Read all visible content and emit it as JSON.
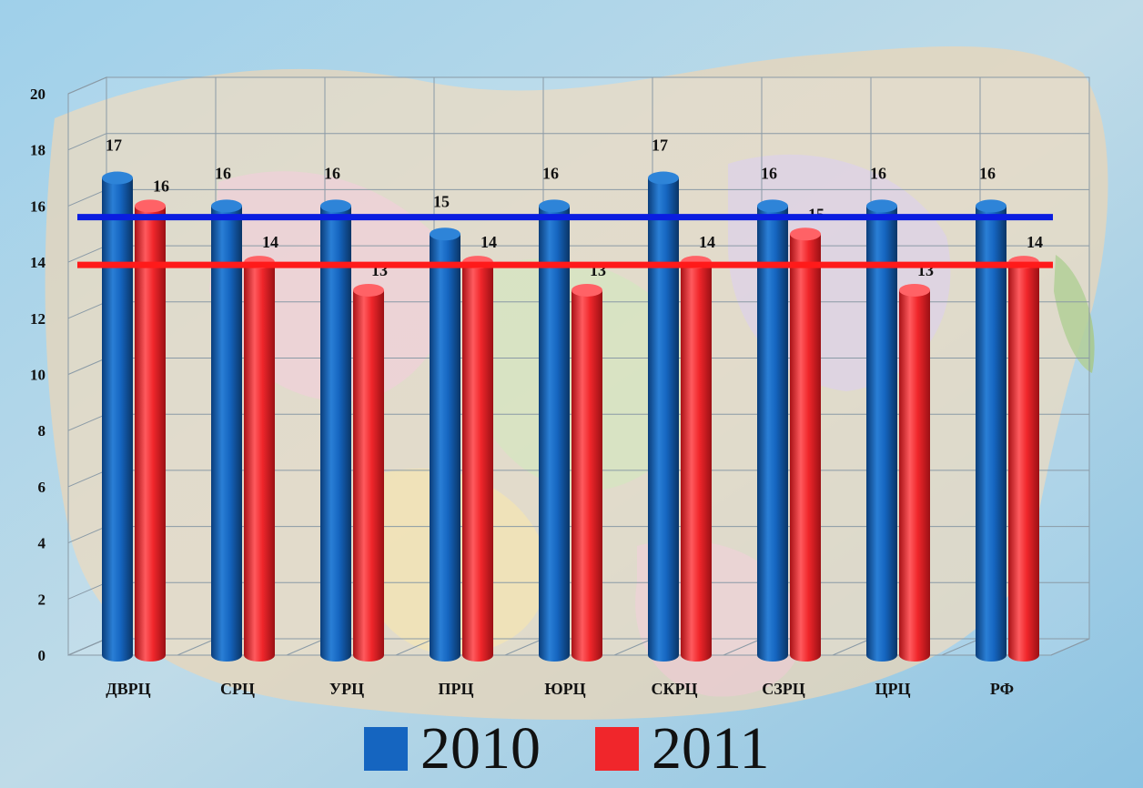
{
  "chart_data": {
    "type": "bar",
    "categories": [
      "ДВРЦ",
      "СРЦ",
      "УРЦ",
      "ПРЦ",
      "ЮРЦ",
      "СКРЦ",
      "СЗРЦ",
      "ЦРЦ",
      "РФ"
    ],
    "series": [
      {
        "name": "2010",
        "color": "#1565c0",
        "values": [
          17,
          16,
          16,
          15,
          16,
          17,
          16,
          16,
          16
        ]
      },
      {
        "name": "2011",
        "color": "#f0262b",
        "values": [
          16,
          14,
          13,
          14,
          13,
          14,
          15,
          13,
          14
        ]
      }
    ],
    "reference_lines": [
      {
        "value": 15.7,
        "color": "#0a1de0"
      },
      {
        "value": 14,
        "color": "#ff1a1a"
      }
    ],
    "ylim": [
      0,
      20
    ],
    "yticks": [
      0,
      2,
      4,
      6,
      8,
      10,
      12,
      14,
      16,
      18,
      20
    ],
    "grid": true,
    "legend_position": "bottom",
    "background": "map-of-russia"
  }
}
